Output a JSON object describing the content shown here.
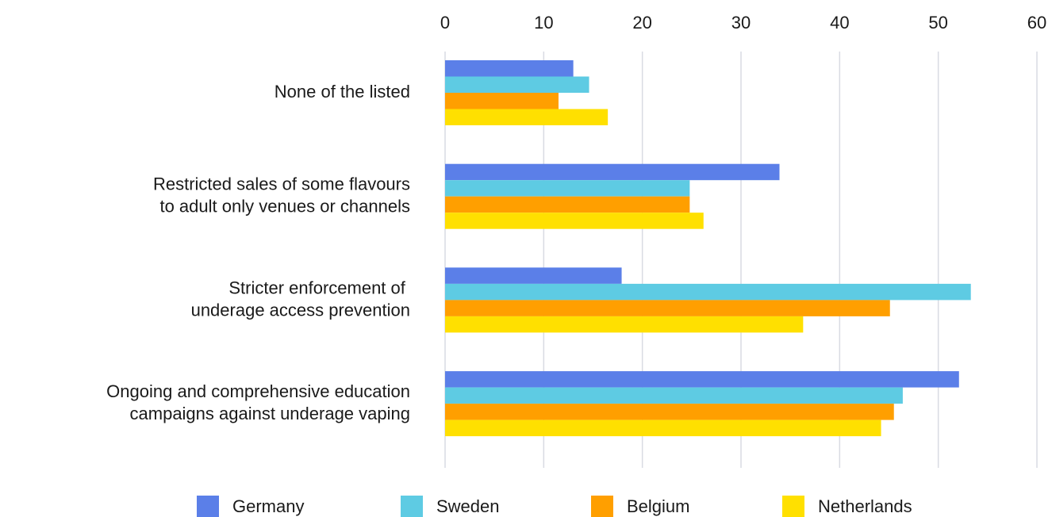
{
  "chart_data": {
    "type": "bar",
    "orientation": "horizontal",
    "categories": [
      "None of the listed",
      "Restricted sales of some flavours\nto adult only venues or channels",
      "Stricter enforcement of \nunderage access prevention",
      "Ongoing and comprehensive education\ncampaigns against underage vaping"
    ],
    "series": [
      {
        "name": "Germany",
        "color": "#5b7fe8",
        "values": [
          13.0,
          33.9,
          17.9,
          52.1
        ]
      },
      {
        "name": "Sweden",
        "color": "#5ecbe3",
        "values": [
          14.6,
          24.8,
          53.3,
          46.4
        ]
      },
      {
        "name": "Belgium",
        "color": "#ff9f00",
        "values": [
          11.5,
          24.8,
          45.1,
          45.5
        ]
      },
      {
        "name": "Netherlands",
        "color": "#ffe000",
        "values": [
          16.5,
          26.2,
          36.3,
          44.2
        ]
      }
    ],
    "xlim": [
      0,
      60
    ],
    "xticks": [
      0,
      10,
      20,
      30,
      40,
      50,
      60
    ],
    "grid": true,
    "legend": "bottom"
  }
}
